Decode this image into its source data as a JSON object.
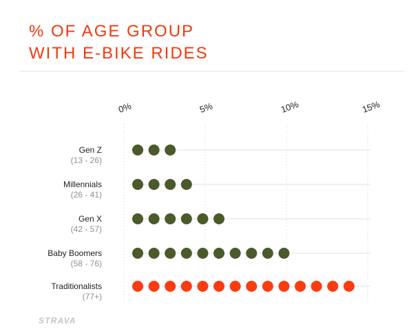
{
  "title_line1": "% OF AGE GROUP",
  "title_line2": "WITH E-BIKE RIDES",
  "logo_text": "STRAVA",
  "colors": {
    "accent": "#f0390f",
    "green": "#4a5a2b",
    "orange": "#fb3b10",
    "grid": "#e2e2e2"
  },
  "chart_data": {
    "type": "bar",
    "subtype": "dot-count",
    "title": "% OF AGE GROUP WITH E-BIKE RIDES",
    "xlim": [
      0,
      15
    ],
    "ticks": [
      0,
      5,
      10,
      15
    ],
    "tick_labels": [
      "0%",
      "5%",
      "10%",
      "15%"
    ],
    "categories": [
      {
        "name": "Gen Z",
        "range": "(13 - 26)"
      },
      {
        "name": "Millennials",
        "range": "(26 - 41)"
      },
      {
        "name": "Gen X",
        "range": "(42 - 57)"
      },
      {
        "name": "Baby Boomers",
        "range": "(58 - 76)"
      },
      {
        "name": "Traditionalists",
        "range": "(77+)"
      }
    ],
    "values": [
      3,
      4,
      6,
      10,
      14
    ],
    "highlight_index": 4,
    "grid": true
  }
}
